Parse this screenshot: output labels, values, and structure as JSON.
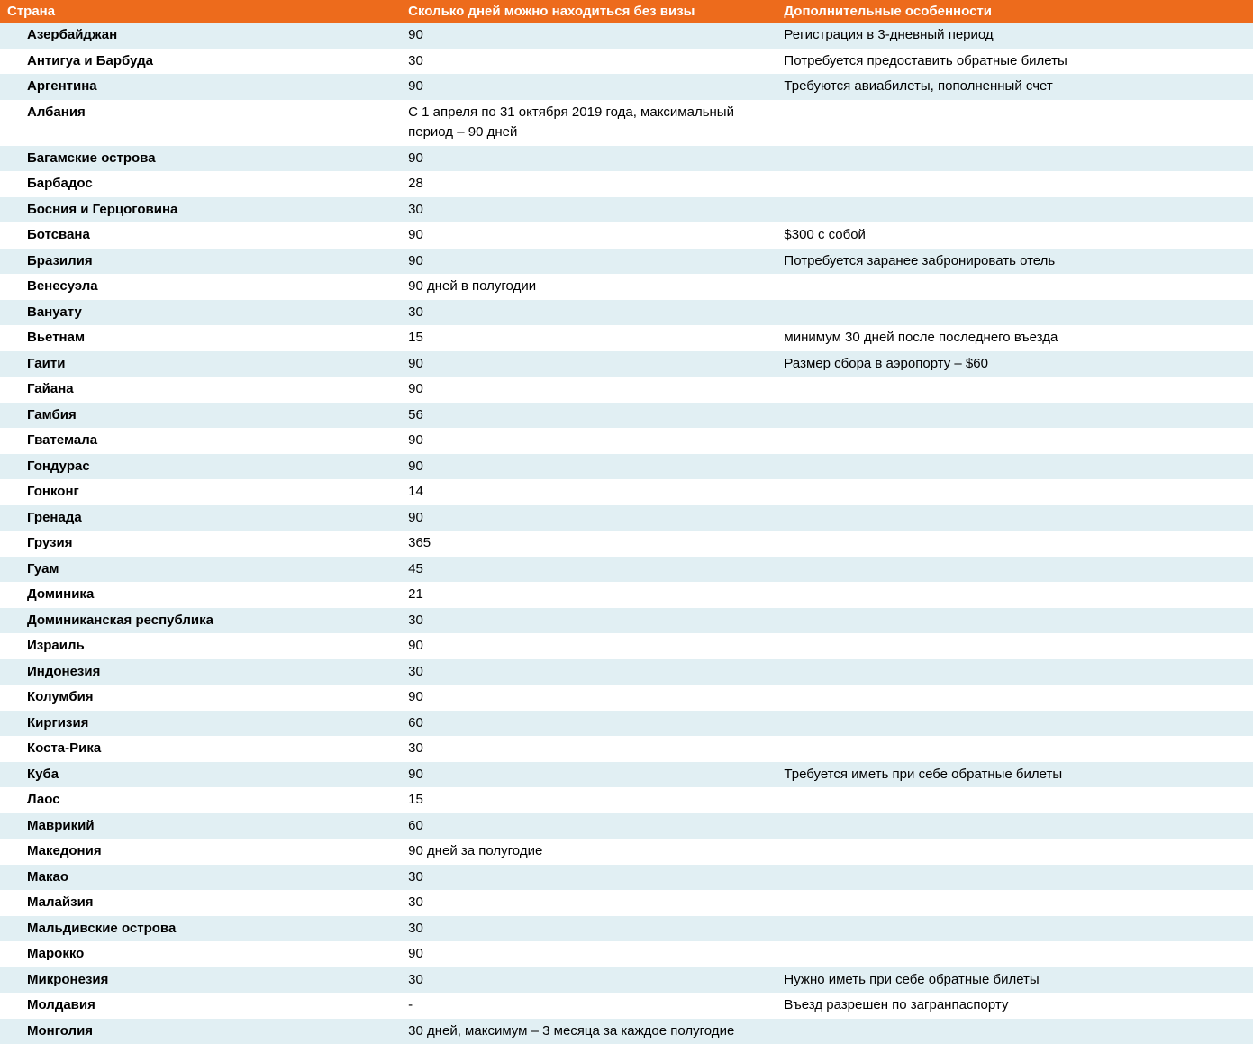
{
  "table": {
    "header_bg_color": "#ed6b1c",
    "header_text_color": "#ffffff",
    "row_odd_bg_color": "#e1eff3",
    "row_even_bg_color": "#ffffff",
    "text_color": "#000000",
    "font_size": 15,
    "columns": [
      "Страна",
      "Сколько дней можно находиться без визы",
      "Дополнительные особенности"
    ],
    "rows": [
      {
        "country": "Азербайджан",
        "days": "90",
        "notes": "Регистрация в 3-дневный период"
      },
      {
        "country": "Антигуа и Барбуда",
        "days": "30",
        "notes": "Потребуется предоставить обратные билеты"
      },
      {
        "country": "Аргентина",
        "days": "90",
        "notes": "Требуются авиабилеты, пополненный счет"
      },
      {
        "country": "Албания",
        "days": "С 1 апреля по 31 октября 2019 года, максимальный период – 90 дней",
        "notes": ""
      },
      {
        "country": "Багамские острова",
        "days": "90",
        "notes": ""
      },
      {
        "country": "Барбадос",
        "days": "28",
        "notes": ""
      },
      {
        "country": "Босния и Герцоговина",
        "days": "30",
        "notes": ""
      },
      {
        "country": "Ботсвана",
        "days": "90",
        "notes": "$300 с собой"
      },
      {
        "country": "Бразилия",
        "days": "90",
        "notes": "Потребуется заранее забронировать отель"
      },
      {
        "country": "Венесуэла",
        "days": "90 дней в полугодии",
        "notes": ""
      },
      {
        "country": "Вануату",
        "days": "30",
        "notes": ""
      },
      {
        "country": "Вьетнам",
        "days": "15",
        "notes": "минимум 30 дней после последнего въезда"
      },
      {
        "country": "Гаити",
        "days": "90",
        "notes": "Размер сбора в аэропорту – $60"
      },
      {
        "country": "Гайана",
        "days": "90",
        "notes": ""
      },
      {
        "country": "Гамбия",
        "days": "56",
        "notes": ""
      },
      {
        "country": "Гватемала",
        "days": "90",
        "notes": ""
      },
      {
        "country": "Гондурас",
        "days": "90",
        "notes": ""
      },
      {
        "country": "Гонконг",
        "days": "14",
        "notes": ""
      },
      {
        "country": "Гренада",
        "days": "90",
        "notes": ""
      },
      {
        "country": "Грузия",
        "days": "365",
        "notes": ""
      },
      {
        "country": "Гуам",
        "days": "45",
        "notes": ""
      },
      {
        "country": "Доминика",
        "days": "21",
        "notes": ""
      },
      {
        "country": "Доминиканская республика",
        "days": "30",
        "notes": ""
      },
      {
        "country": "Израиль",
        "days": "90",
        "notes": ""
      },
      {
        "country": "Индонезия",
        "days": "30",
        "notes": ""
      },
      {
        "country": "Колумбия",
        "days": "90",
        "notes": ""
      },
      {
        "country": "Киргизия",
        "days": "60",
        "notes": ""
      },
      {
        "country": "Коста-Рика",
        "days": "30",
        "notes": ""
      },
      {
        "country": "Куба",
        "days": "90",
        "notes": "Требуется иметь при себе обратные билеты"
      },
      {
        "country": "Лаос",
        "days": "15",
        "notes": ""
      },
      {
        "country": "Маврикий",
        "days": "60",
        "notes": ""
      },
      {
        "country": "Македония",
        "days": "90 дней за полугодие",
        "notes": ""
      },
      {
        "country": "Макао",
        "days": "30",
        "notes": ""
      },
      {
        "country": "Малайзия",
        "days": "30",
        "notes": ""
      },
      {
        "country": "Мальдивские острова",
        "days": "30",
        "notes": ""
      },
      {
        "country": "Марокко",
        "days": "90",
        "notes": ""
      },
      {
        "country": "Микронезия",
        "days": "30",
        "notes": "Нужно иметь при себе обратные билеты"
      },
      {
        "country": "Молдавия",
        "days": "-",
        "notes": "Въезд разрешен по загранпаспорту"
      },
      {
        "country": "Монголия",
        "days": "30 дней, максимум – 3 месяца за каждое полугодие",
        "notes": ""
      }
    ]
  }
}
